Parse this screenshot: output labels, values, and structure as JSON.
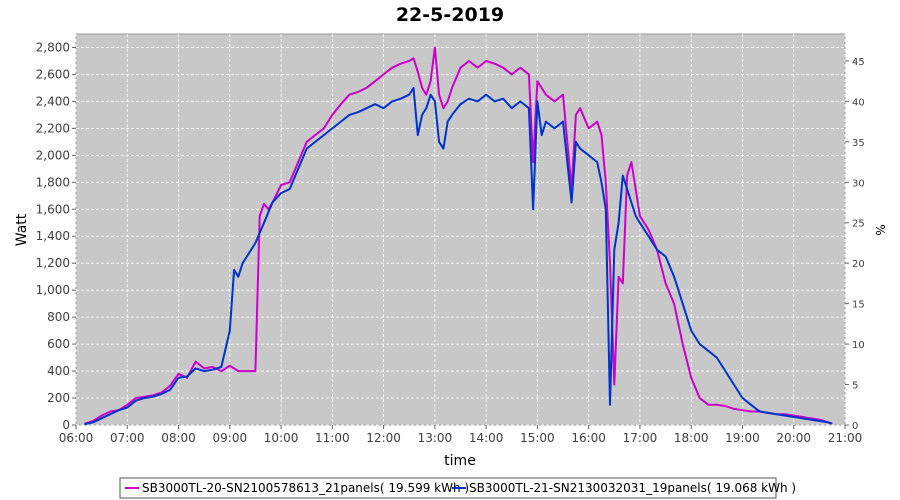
{
  "chart_data": {
    "type": "line",
    "title": "22-5-2019",
    "xlabel": "time",
    "ylabel": "Watt",
    "y2label": "%",
    "xlim": [
      "06:00",
      "21:00"
    ],
    "ylim": [
      0,
      2900
    ],
    "y2lim": [
      0,
      48.33
    ],
    "x_ticks": [
      "06:00",
      "07:00",
      "08:00",
      "09:00",
      "10:00",
      "11:00",
      "12:00",
      "13:00",
      "14:00",
      "15:00",
      "16:00",
      "17:00",
      "18:00",
      "19:00",
      "20:00",
      "21:00"
    ],
    "y_ticks": [
      "0",
      "200",
      "400",
      "600",
      "800",
      "1,000",
      "1,200",
      "1,400",
      "1,600",
      "1,800",
      "2,000",
      "2,200",
      "2,400",
      "2,600",
      "2,800"
    ],
    "y2_ticks": [
      "0",
      "5",
      "10",
      "15",
      "20",
      "25",
      "30",
      "35",
      "40",
      "45"
    ],
    "grid": true,
    "legend_position": "bottom",
    "background": "#c8c8c8",
    "series": [
      {
        "name": "SB3000TL-20-SN2100578613_21panels( 19.599 kWh )",
        "color": "#cc00cc",
        "x": [
          "06:10",
          "06:20",
          "06:30",
          "06:40",
          "06:50",
          "07:00",
          "07:10",
          "07:20",
          "07:30",
          "07:40",
          "07:50",
          "08:00",
          "08:10",
          "08:20",
          "08:30",
          "08:40",
          "08:50",
          "09:00",
          "09:10",
          "09:20",
          "09:30",
          "09:35",
          "09:40",
          "09:45",
          "09:50",
          "10:00",
          "10:10",
          "10:20",
          "10:30",
          "10:40",
          "10:50",
          "11:00",
          "11:10",
          "11:20",
          "11:30",
          "11:40",
          "11:50",
          "12:00",
          "12:10",
          "12:20",
          "12:30",
          "12:35",
          "12:40",
          "12:45",
          "12:50",
          "12:55",
          "13:00",
          "13:05",
          "13:10",
          "13:15",
          "13:20",
          "13:30",
          "13:40",
          "13:50",
          "14:00",
          "14:10",
          "14:20",
          "14:30",
          "14:40",
          "14:50",
          "14:55",
          "15:00",
          "15:10",
          "15:20",
          "15:30",
          "15:40",
          "15:45",
          "15:50",
          "16:00",
          "16:10",
          "16:15",
          "16:20",
          "16:25",
          "16:30",
          "16:35",
          "16:40",
          "16:45",
          "16:50",
          "16:55",
          "17:00",
          "17:05",
          "17:10",
          "17:20",
          "17:30",
          "17:40",
          "17:50",
          "18:00",
          "18:10",
          "18:20",
          "18:30",
          "18:40",
          "18:50",
          "19:00",
          "19:10",
          "19:20",
          "19:30",
          "19:40",
          "19:50",
          "20:00",
          "20:10",
          "20:20",
          "20:30",
          "20:40",
          "20:45"
        ],
        "y": [
          10,
          30,
          70,
          100,
          110,
          150,
          200,
          210,
          220,
          240,
          290,
          380,
          350,
          470,
          420,
          430,
          400,
          440,
          400,
          400,
          400,
          1550,
          1640,
          1600,
          1650,
          1780,
          1800,
          1950,
          2100,
          2150,
          2200,
          2300,
          2380,
          2450,
          2470,
          2500,
          2550,
          2600,
          2650,
          2680,
          2700,
          2720,
          2620,
          2500,
          2450,
          2550,
          2800,
          2450,
          2350,
          2400,
          2500,
          2650,
          2700,
          2650,
          2700,
          2680,
          2650,
          2600,
          2650,
          2600,
          1950,
          2550,
          2450,
          2400,
          2450,
          1750,
          2300,
          2350,
          2200,
          2250,
          2150,
          1800,
          1200,
          300,
          1100,
          1050,
          1850,
          1950,
          1750,
          1550,
          1500,
          1450,
          1300,
          1050,
          900,
          600,
          350,
          200,
          150,
          150,
          140,
          120,
          110,
          100,
          100,
          90,
          80,
          80,
          70,
          60,
          50,
          40,
          20,
          10
        ]
      },
      {
        "name": "SB3000TL-21-SN2130032031_19panels( 19.068 kWh )",
        "color": "#0033cc",
        "x": [
          "06:10",
          "06:20",
          "06:30",
          "06:40",
          "06:50",
          "07:00",
          "07:10",
          "07:20",
          "07:30",
          "07:40",
          "07:50",
          "08:00",
          "08:10",
          "08:20",
          "08:30",
          "08:40",
          "08:50",
          "09:00",
          "09:05",
          "09:10",
          "09:15",
          "09:20",
          "09:30",
          "09:40",
          "09:50",
          "10:00",
          "10:10",
          "10:20",
          "10:30",
          "10:40",
          "10:50",
          "11:00",
          "11:10",
          "11:20",
          "11:30",
          "11:40",
          "11:50",
          "12:00",
          "12:10",
          "12:20",
          "12:30",
          "12:35",
          "12:40",
          "12:45",
          "12:50",
          "12:55",
          "13:00",
          "13:05",
          "13:10",
          "13:15",
          "13:20",
          "13:30",
          "13:40",
          "13:50",
          "14:00",
          "14:10",
          "14:20",
          "14:30",
          "14:40",
          "14:50",
          "14:55",
          "15:00",
          "15:05",
          "15:10",
          "15:20",
          "15:30",
          "15:40",
          "15:45",
          "15:50",
          "16:00",
          "16:10",
          "16:15",
          "16:20",
          "16:25",
          "16:30",
          "16:35",
          "16:40",
          "16:45",
          "16:50",
          "16:55",
          "17:00",
          "17:05",
          "17:10",
          "17:20",
          "17:30",
          "17:40",
          "17:50",
          "18:00",
          "18:10",
          "18:20",
          "18:30",
          "18:40",
          "18:50",
          "19:00",
          "19:10",
          "19:20",
          "19:30",
          "19:40",
          "19:50",
          "20:00",
          "20:10",
          "20:20",
          "20:30",
          "20:40",
          "20:45"
        ],
        "y": [
          5,
          20,
          50,
          80,
          110,
          130,
          180,
          200,
          210,
          230,
          260,
          350,
          360,
          420,
          400,
          410,
          430,
          700,
          1150,
          1100,
          1200,
          1250,
          1350,
          1500,
          1650,
          1720,
          1750,
          1900,
          2050,
          2100,
          2150,
          2200,
          2250,
          2300,
          2320,
          2350,
          2380,
          2350,
          2400,
          2420,
          2450,
          2500,
          2150,
          2300,
          2350,
          2450,
          2400,
          2100,
          2050,
          2250,
          2300,
          2380,
          2420,
          2400,
          2450,
          2400,
          2420,
          2350,
          2400,
          2350,
          1600,
          2400,
          2150,
          2250,
          2200,
          2250,
          1650,
          2100,
          2050,
          2000,
          1950,
          1800,
          1600,
          150,
          1300,
          1500,
          1850,
          1750,
          1650,
          1550,
          1500,
          1450,
          1400,
          1300,
          1250,
          1100,
          900,
          700,
          600,
          550,
          500,
          400,
          300,
          200,
          150,
          100,
          90,
          80,
          70,
          60,
          50,
          40,
          30,
          20,
          10
        ]
      }
    ]
  }
}
